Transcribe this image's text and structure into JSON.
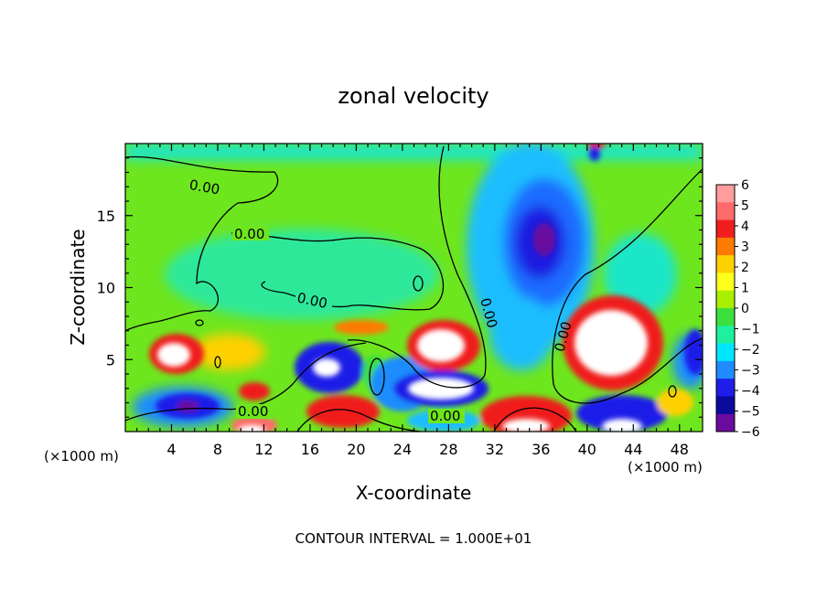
{
  "chart_data": {
    "type": "heatmap",
    "title": "zonal velocity",
    "xlabel": "X-coordinate",
    "ylabel": "Z-coordinate",
    "x_unit_left": "(×1000 m)",
    "x_unit_right": "(×1000 m)",
    "x_ticks": [
      4,
      8,
      12,
      16,
      20,
      24,
      28,
      32,
      36,
      40,
      44,
      48
    ],
    "y_ticks": [
      5,
      10,
      15
    ],
    "xlim": [
      0,
      50
    ],
    "ylim": [
      0,
      20
    ],
    "footer": "CONTOUR INTERVAL = 1.000E+01",
    "contour_label": "0.00",
    "colorbar": {
      "levels": [
        6,
        5,
        4,
        3,
        2,
        1,
        0,
        -1,
        -2,
        -3,
        -4,
        -5,
        -6
      ],
      "colors": [
        "#ff9d9d",
        "#ff6a6a",
        "#f01e1e",
        "#ff7a00",
        "#ffd000",
        "#ffff1e",
        "#a8f000",
        "#3ce03c",
        "#1ef0a0",
        "#00e6ff",
        "#1e8cff",
        "#1e1ee8",
        "#0a0a9e",
        "#6a0a9e"
      ],
      "range": [
        -6,
        6
      ]
    },
    "field_features": [
      {
        "x": 5,
        "z": 5.5,
        "value": 7
      },
      {
        "x": 6,
        "z": 2,
        "value": -5
      },
      {
        "x": 11,
        "z": 2.8,
        "value": 5
      },
      {
        "x": 18,
        "z": 4.5,
        "value": -5
      },
      {
        "x": 19,
        "z": 1.3,
        "value": 5
      },
      {
        "x": 22,
        "z": 4,
        "value": 1
      },
      {
        "x": 27,
        "z": 6,
        "value": 7
      },
      {
        "x": 27,
        "z": 3,
        "value": -6
      },
      {
        "x": 34,
        "z": 1.5,
        "value": 6
      },
      {
        "x": 42,
        "z": 6,
        "value": 7
      },
      {
        "x": 45,
        "z": 2,
        "value": -4
      },
      {
        "x": 35,
        "z": 13,
        "value": -5
      },
      {
        "x": 35,
        "z": 8,
        "value": -2
      },
      {
        "x": 48,
        "z": 5,
        "value": -2
      },
      {
        "x": 15,
        "z": 10,
        "value": -0.5
      }
    ]
  }
}
